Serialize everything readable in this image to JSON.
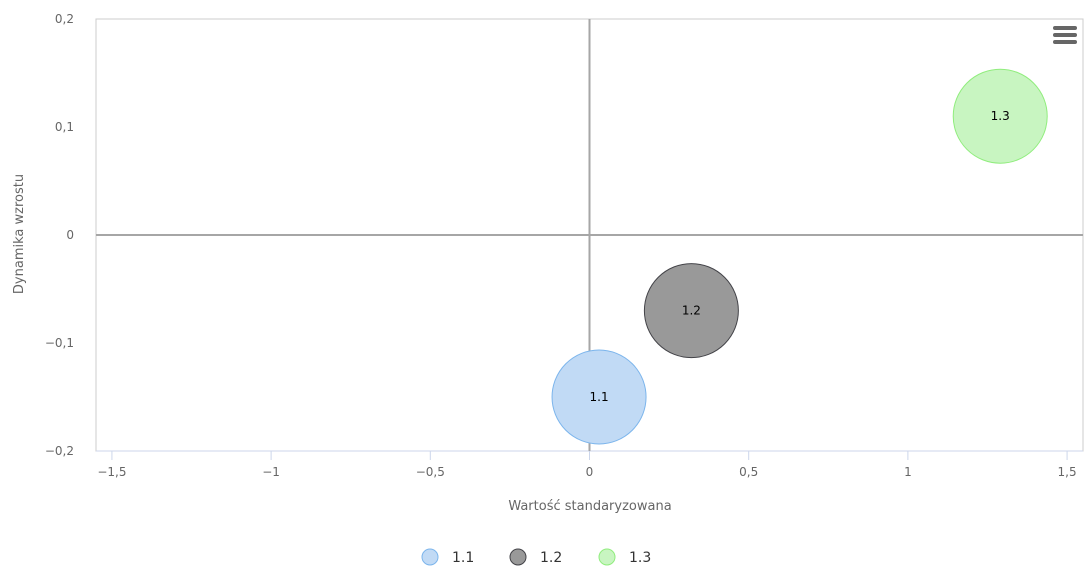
{
  "chart_data": {
    "type": "scatter",
    "subtype": "bubble",
    "xlabel": "Wartość standaryzowana",
    "ylabel": "Dynamika wzrostu",
    "xlim": [
      -1.55,
      1.55
    ],
    "ylim": [
      -0.2,
      0.2
    ],
    "x_ticks": [
      {
        "value": -1.5,
        "label": "−1,5"
      },
      {
        "value": -1,
        "label": "−1"
      },
      {
        "value": -0.5,
        "label": "−0,5"
      },
      {
        "value": 0,
        "label": "0"
      },
      {
        "value": 0.5,
        "label": "0,5"
      },
      {
        "value": 1,
        "label": "1"
      },
      {
        "value": 1.5,
        "label": "1,5"
      }
    ],
    "y_ticks": [
      {
        "value": 0.2,
        "label": "0,2"
      },
      {
        "value": 0.1,
        "label": "0,1"
      },
      {
        "value": 0,
        "label": "0"
      },
      {
        "value": -0.1,
        "label": "−0,1"
      },
      {
        "value": -0.2,
        "label": "−0,2"
      }
    ],
    "grid": false,
    "legend_position": "bottom-center",
    "series": [
      {
        "name": "1.1",
        "x": 0.03,
        "y": -0.15,
        "size": 1,
        "label": "1.1",
        "fill": "#c1daf5",
        "stroke": "#7cb5ec"
      },
      {
        "name": "1.2",
        "x": 0.32,
        "y": -0.07,
        "size": 1,
        "label": "1.2",
        "fill": "#999999",
        "stroke": "#434348"
      },
      {
        "name": "1.3",
        "x": 1.29,
        "y": 0.11,
        "size": 1,
        "label": "1.3",
        "fill": "#c8f5c1",
        "stroke": "#90ed7d"
      }
    ]
  },
  "icons": {
    "menu": "hamburger-menu-icon"
  }
}
